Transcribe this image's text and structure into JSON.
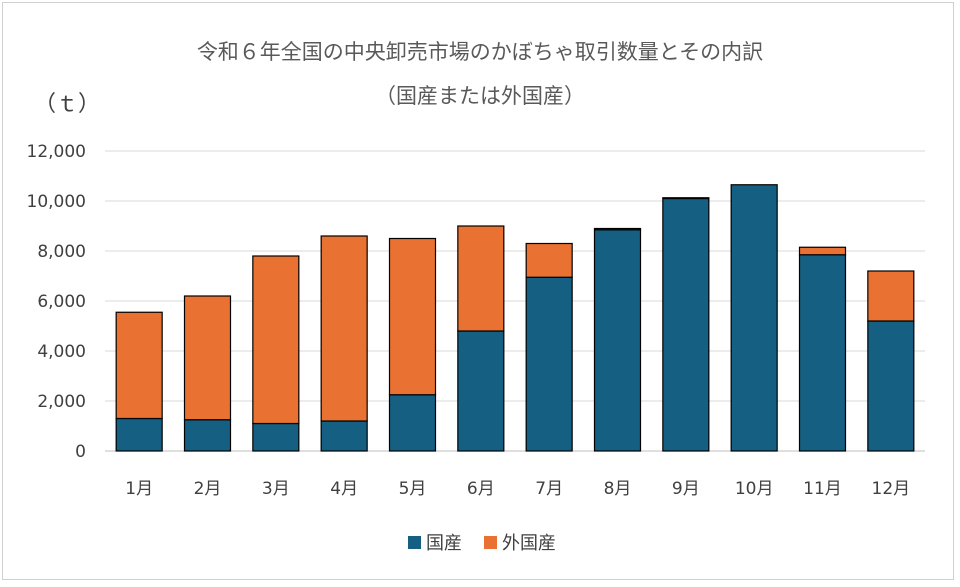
{
  "chart_data": {
    "type": "bar",
    "stacked": true,
    "title": "令和６年全国の中央卸売市場のかぼちゃ取引数量とその内訳",
    "subtitle": "（国産または外国産）",
    "ylabel": "（ｔ）",
    "xlabel": "",
    "categories": [
      "1月",
      "2月",
      "3月",
      "4月",
      "5月",
      "6月",
      "7月",
      "8月",
      "9月",
      "10月",
      "11月",
      "12月"
    ],
    "ylim": [
      0,
      12000
    ],
    "yticks": [
      0,
      2000,
      4000,
      6000,
      8000,
      10000,
      12000
    ],
    "ytick_labels": [
      "0",
      "2,000",
      "4,000",
      "6,000",
      "8,000",
      "10,000",
      "12,000"
    ],
    "grid": true,
    "legend_position": "bottom",
    "series": [
      {
        "name": "国産",
        "color": "#156082",
        "values": [
          1300,
          1250,
          1100,
          1200,
          2250,
          4800,
          6950,
          8850,
          10100,
          10650,
          7850,
          5200
        ]
      },
      {
        "name": "外国産",
        "color": "#E97132",
        "values": [
          4250,
          4950,
          6700,
          7400,
          6250,
          4200,
          1350,
          50,
          30,
          0,
          300,
          2000
        ]
      }
    ]
  }
}
